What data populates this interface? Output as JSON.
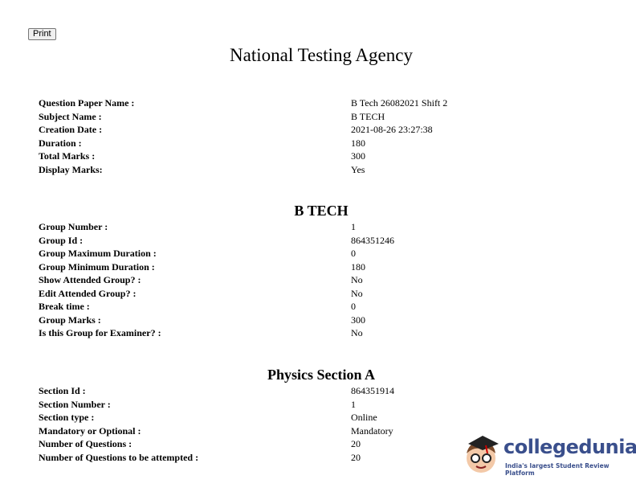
{
  "print_label": "Print",
  "title": "National Testing Agency",
  "paper": [
    {
      "label": "Question Paper Name :",
      "value": "B Tech 26082021 Shift 2"
    },
    {
      "label": "Subject Name :",
      "value": "B TECH"
    },
    {
      "label": "Creation Date :",
      "value": "2021-08-26 23:27:38"
    },
    {
      "label": "Duration :",
      "value": "180"
    },
    {
      "label": "Total Marks :",
      "value": "300"
    },
    {
      "label": "Display Marks:",
      "value": "Yes"
    }
  ],
  "group_heading": "B TECH",
  "group": [
    {
      "label": "Group Number :",
      "value": "1"
    },
    {
      "label": "Group Id :",
      "value": "864351246"
    },
    {
      "label": "Group Maximum Duration :",
      "value": "0"
    },
    {
      "label": "Group Minimum Duration :",
      "value": "180"
    },
    {
      "label": "Show Attended Group? :",
      "value": "No"
    },
    {
      "label": "Edit Attended Group? :",
      "value": "No"
    },
    {
      "label": "Break time :",
      "value": "0"
    },
    {
      "label": "Group Marks :",
      "value": "300"
    },
    {
      "label": "Is this Group for Examiner? :",
      "value": "No"
    }
  ],
  "section_heading": "Physics Section A",
  "section": [
    {
      "label": "Section Id :",
      "value": "864351914"
    },
    {
      "label": "Section Number :",
      "value": "1"
    },
    {
      "label": "Section type :",
      "value": "Online"
    },
    {
      "label": "Mandatory or Optional :",
      "value": "Mandatory"
    },
    {
      "label": "Number of Questions :",
      "value": "20"
    },
    {
      "label": "Number of Questions to be attempted :",
      "value": "20"
    }
  ],
  "watermark": {
    "name": "collegedunia",
    "tagline": "India's largest Student Review Platform",
    "color": "#3a4f8c"
  }
}
